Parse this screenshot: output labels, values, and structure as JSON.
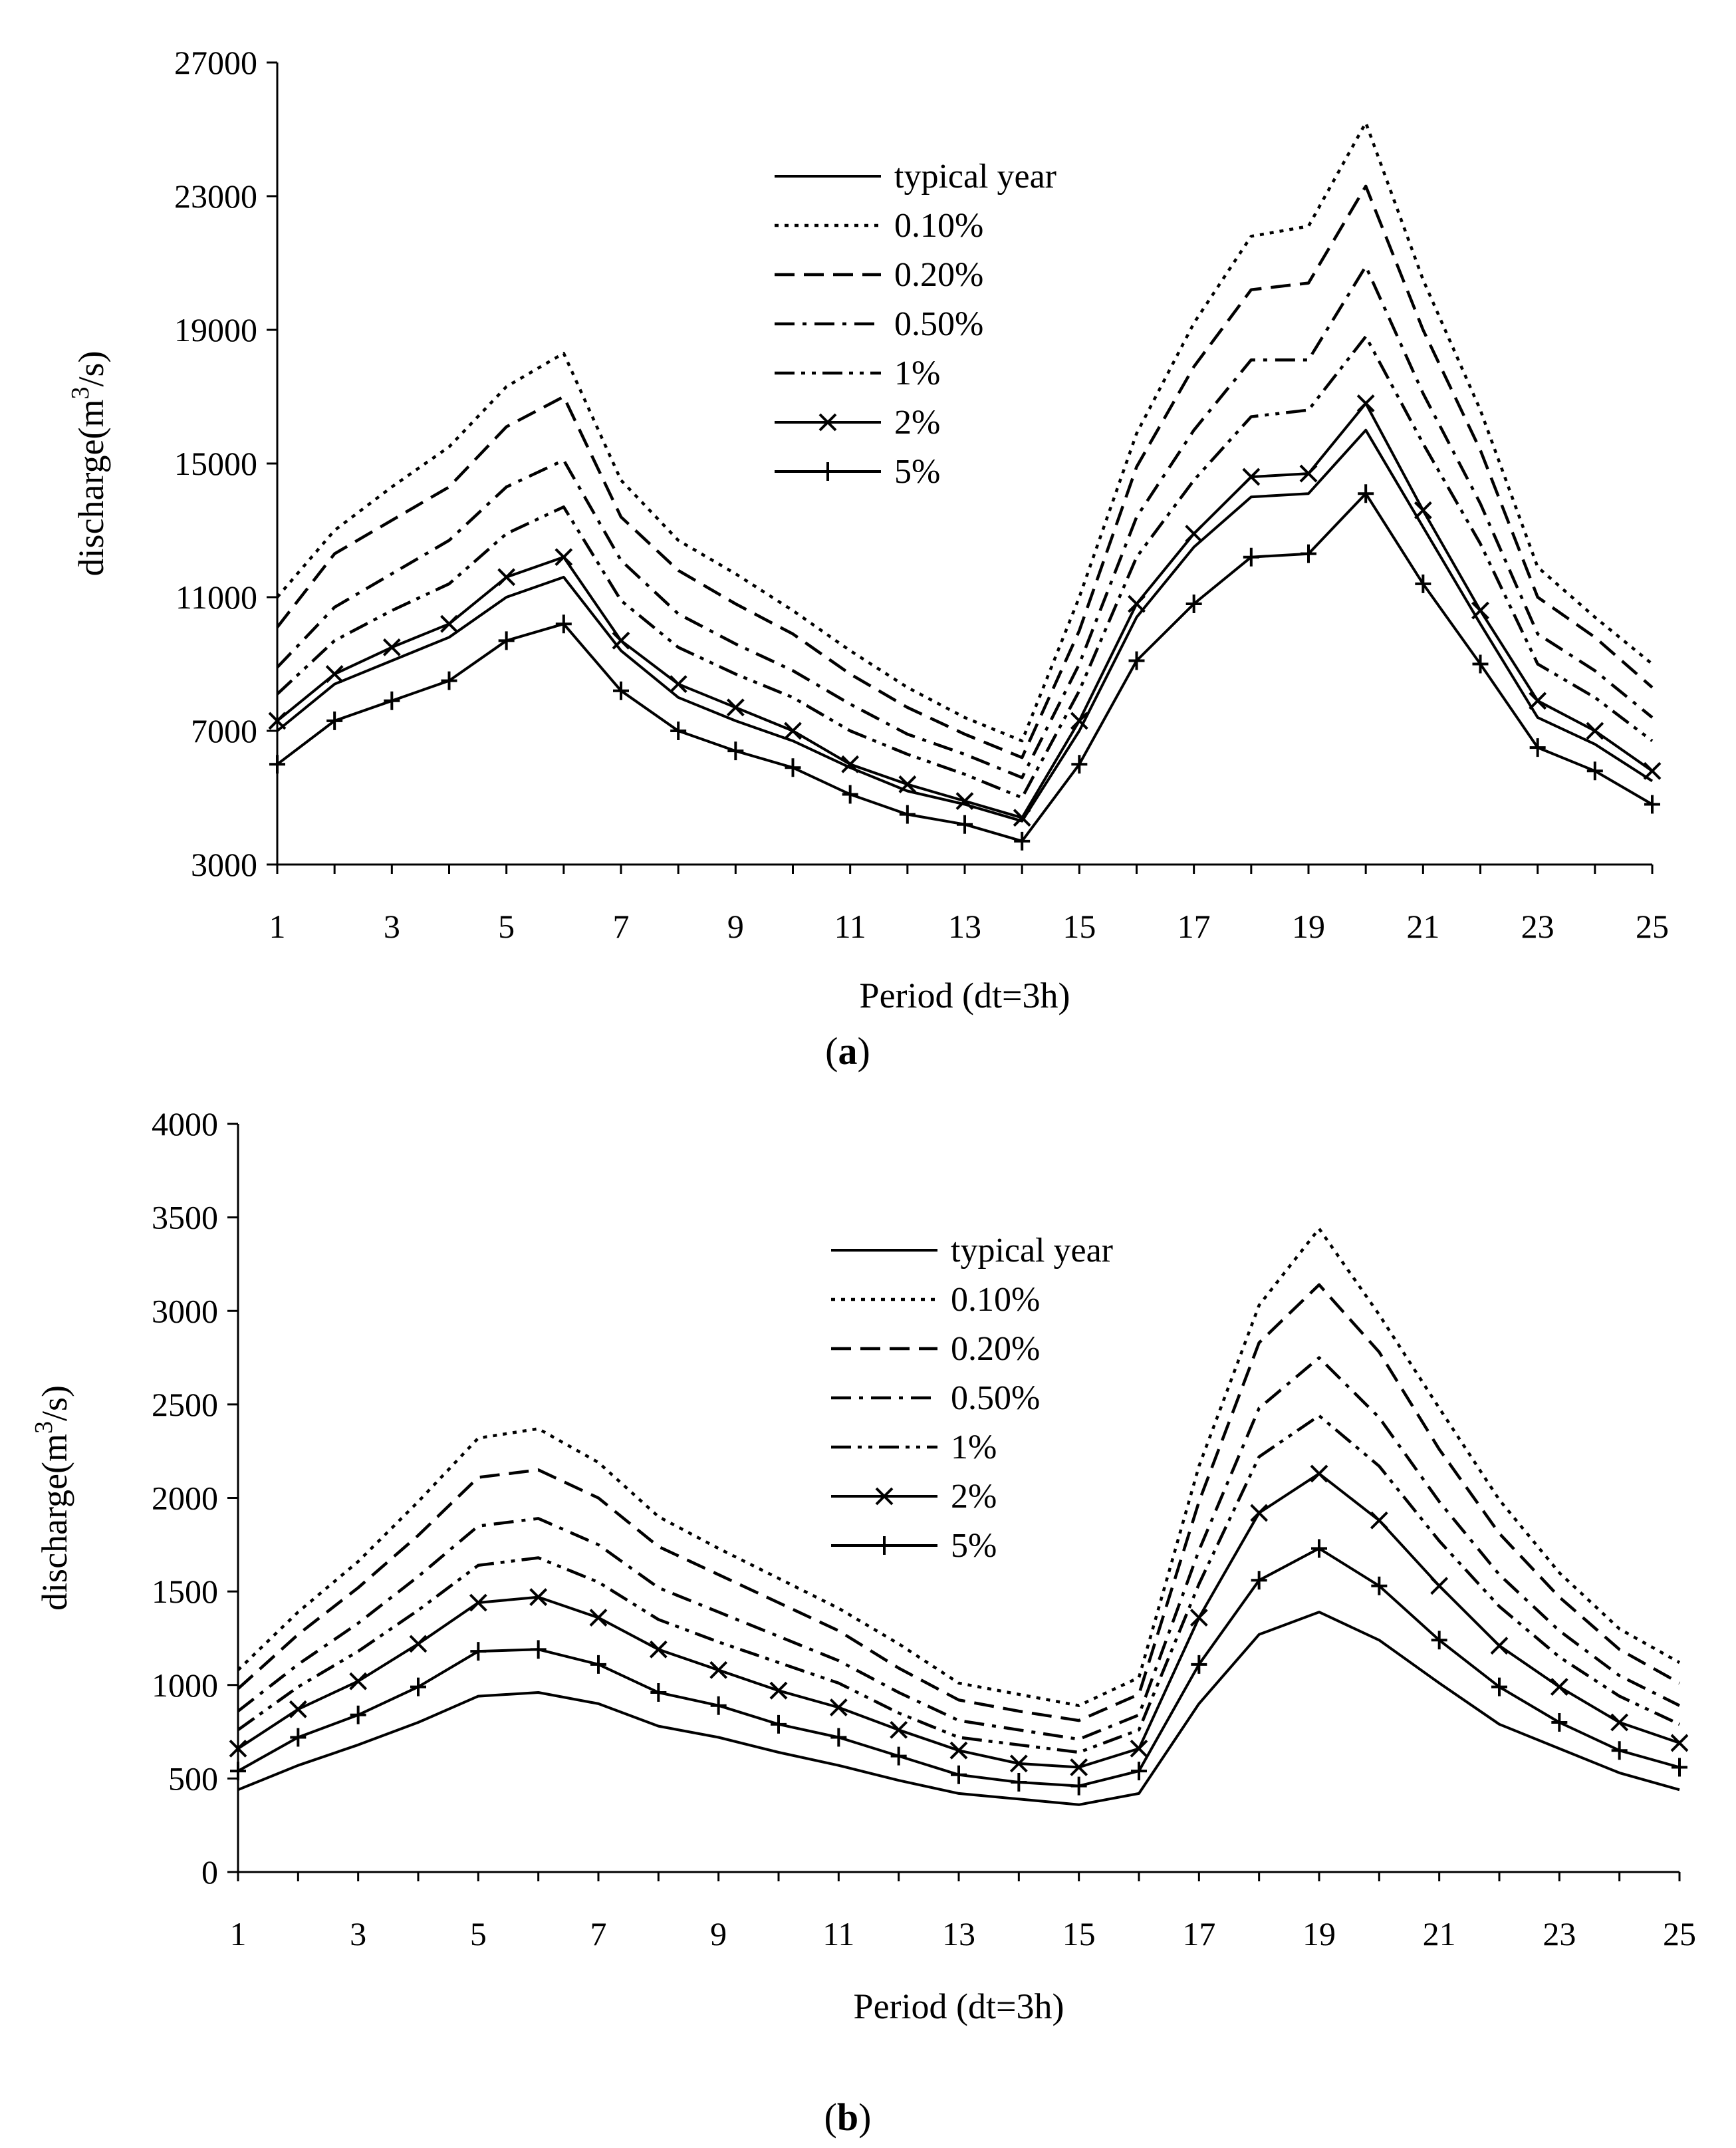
{
  "figure": {
    "captions": [
      "(",
      "a",
      ")",
      "b"
    ]
  },
  "chart_data": [
    {
      "id": "a",
      "type": "line",
      "caption": "(a)",
      "xlabel": "Period (dt=3h)",
      "ylabel_prefix": "discharge(m",
      "ylabel_sup": "3",
      "ylabel_suffix": "/s)",
      "ylim": [
        3000,
        27000
      ],
      "yticks": [
        3000,
        7000,
        11000,
        15000,
        19000,
        23000,
        27000
      ],
      "xlim": [
        1,
        25
      ],
      "xticks": [
        1,
        3,
        5,
        7,
        9,
        11,
        13,
        15,
        17,
        19,
        21,
        23,
        25
      ],
      "legend_position": "top-center",
      "x": [
        1,
        2,
        3,
        4,
        5,
        6,
        7,
        8,
        9,
        10,
        11,
        12,
        13,
        14,
        15,
        16,
        17,
        18,
        19,
        20,
        21,
        22,
        23,
        24,
        25
      ],
      "series": [
        {
          "name": "typical year",
          "style": "solid",
          "marker": "none",
          "values": [
            7000,
            8400,
            9100,
            9800,
            11000,
            11600,
            9400,
            8000,
            7300,
            6700,
            5900,
            5200,
            4800,
            4300,
            7000,
            10400,
            12500,
            14000,
            14100,
            16000,
            13100,
            10200,
            7400,
            6600,
            5500
          ]
        },
        {
          "name": "0.10%",
          "style": "dotted",
          "marker": "none",
          "values": [
            11000,
            13000,
            14300,
            15500,
            17300,
            18300,
            14500,
            12700,
            11700,
            10600,
            9400,
            8300,
            7400,
            6700,
            11000,
            15900,
            19200,
            21800,
            22100,
            25200,
            20500,
            16600,
            11900,
            10400,
            9000
          ]
        },
        {
          "name": "0.20%",
          "style": "dashed",
          "marker": "none",
          "values": [
            10100,
            12300,
            13300,
            14300,
            16100,
            17000,
            13400,
            11800,
            10800,
            9900,
            8700,
            7700,
            6900,
            6200,
            10000,
            14900,
            17900,
            20200,
            20400,
            23300,
            19000,
            15400,
            11000,
            9800,
            8300
          ]
        },
        {
          "name": "0.50%",
          "style": "dashdot",
          "marker": "none",
          "values": [
            8900,
            10700,
            11700,
            12700,
            14300,
            15100,
            12100,
            10500,
            9600,
            8800,
            7800,
            6900,
            6300,
            5600,
            9000,
            13400,
            16000,
            18100,
            18100,
            20900,
            17100,
            13800,
            9900,
            8800,
            7400
          ]
        },
        {
          "name": "1%",
          "style": "dashdotdot",
          "marker": "none",
          "values": [
            8100,
            9700,
            10600,
            11400,
            12900,
            13700,
            10900,
            9500,
            8700,
            8000,
            7000,
            6300,
            5700,
            5000,
            8200,
            12200,
            14500,
            16400,
            16600,
            18800,
            15600,
            12600,
            9000,
            8000,
            6700
          ]
        },
        {
          "name": "2%",
          "style": "solid",
          "marker": "x",
          "values": [
            7300,
            8700,
            9500,
            10200,
            11600,
            12200,
            9700,
            8400,
            7700,
            7000,
            6000,
            5400,
            4900,
            4400,
            7300,
            10800,
            12900,
            14600,
            14700,
            16800,
            13600,
            10600,
            7900,
            7000,
            5800
          ]
        },
        {
          "name": "5%",
          "style": "solid",
          "marker": "plus",
          "values": [
            6000,
            7300,
            7900,
            8500,
            9700,
            10200,
            8200,
            7000,
            6400,
            5900,
            5100,
            4500,
            4200,
            3700,
            6000,
            9100,
            10800,
            12200,
            12300,
            14100,
            11400,
            9000,
            6500,
            5800,
            4800
          ]
        }
      ]
    },
    {
      "id": "b",
      "type": "line",
      "caption": "(b)",
      "xlabel": "Period (dt=3h)",
      "ylabel_prefix": "discharge(m",
      "ylabel_sup": "3",
      "ylabel_suffix": "/s)",
      "ylim": [
        0,
        4000
      ],
      "yticks": [
        0,
        500,
        1000,
        1500,
        2000,
        2500,
        3000,
        3500,
        4000
      ],
      "xlim": [
        1,
        25
      ],
      "xticks": [
        1,
        3,
        5,
        7,
        9,
        11,
        13,
        15,
        17,
        19,
        21,
        23,
        25
      ],
      "legend_position": "top-center",
      "x": [
        1,
        2,
        3,
        4,
        5,
        6,
        7,
        8,
        9,
        10,
        11,
        12,
        13,
        14,
        15,
        16,
        17,
        18,
        19,
        20,
        21,
        22,
        23,
        24,
        25
      ],
      "series": [
        {
          "name": "typical year",
          "style": "solid",
          "marker": "none",
          "values": [
            440,
            570,
            680,
            800,
            940,
            960,
            900,
            780,
            720,
            640,
            570,
            490,
            420,
            390,
            360,
            420,
            900,
            1270,
            1390,
            1240,
            1010,
            790,
            660,
            530,
            440
          ]
        },
        {
          "name": "0.10%",
          "style": "dotted",
          "marker": "none",
          "values": [
            1080,
            1390,
            1660,
            1980,
            2320,
            2370,
            2190,
            1900,
            1730,
            1570,
            1410,
            1220,
            1010,
            950,
            890,
            1040,
            2170,
            3030,
            3440,
            2980,
            2480,
            1990,
            1600,
            1300,
            1120
          ]
        },
        {
          "name": "0.20%",
          "style": "dashed",
          "marker": "none",
          "values": [
            980,
            1270,
            1520,
            1800,
            2110,
            2150,
            2000,
            1740,
            1590,
            1440,
            1290,
            1090,
            920,
            860,
            810,
            950,
            1980,
            2830,
            3140,
            2780,
            2260,
            1810,
            1470,
            1190,
            1010
          ]
        },
        {
          "name": "0.50%",
          "style": "dashdot",
          "marker": "none",
          "values": [
            860,
            1110,
            1330,
            1580,
            1850,
            1890,
            1750,
            1520,
            1390,
            1260,
            1130,
            960,
            810,
            760,
            710,
            840,
            1720,
            2480,
            2750,
            2430,
            1980,
            1590,
            1290,
            1050,
            890
          ]
        },
        {
          "name": "1%",
          "style": "dashdotdot",
          "marker": "none",
          "values": [
            760,
            990,
            1180,
            1400,
            1640,
            1680,
            1550,
            1350,
            1230,
            1120,
            1010,
            850,
            720,
            680,
            640,
            760,
            1540,
            2220,
            2440,
            2170,
            1770,
            1420,
            1150,
            940,
            790
          ]
        },
        {
          "name": "2%",
          "style": "solid",
          "marker": "x",
          "values": [
            660,
            870,
            1020,
            1220,
            1440,
            1470,
            1360,
            1190,
            1080,
            970,
            880,
            760,
            650,
            580,
            560,
            660,
            1360,
            1920,
            2130,
            1880,
            1530,
            1210,
            990,
            800,
            690
          ]
        },
        {
          "name": "5%",
          "style": "solid",
          "marker": "plus",
          "values": [
            540,
            720,
            840,
            990,
            1180,
            1190,
            1110,
            960,
            890,
            790,
            720,
            620,
            520,
            480,
            460,
            540,
            1110,
            1560,
            1730,
            1530,
            1240,
            990,
            800,
            650,
            560
          ]
        }
      ]
    }
  ]
}
